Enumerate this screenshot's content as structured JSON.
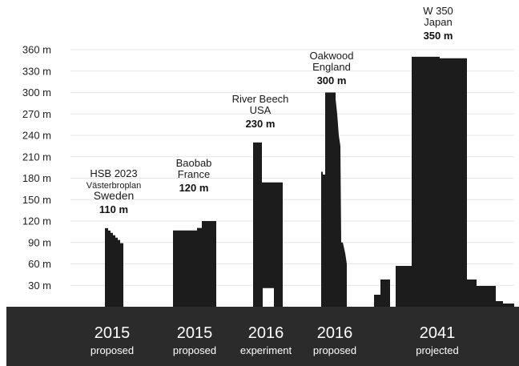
{
  "chart_data": {
    "type": "bar",
    "title": "",
    "xlabel": "",
    "ylabel": "",
    "unit": "m",
    "ylim": [
      0,
      360
    ],
    "yticks": [
      30,
      60,
      90,
      120,
      150,
      180,
      210,
      240,
      270,
      300,
      330,
      360
    ],
    "grid": true,
    "legend": "none",
    "colors": {
      "building": "#1c1c1c",
      "ground": "#2b2b2b",
      "grid": "#e6e6e6",
      "axis_text": "#222222",
      "year_text": "#ffffff"
    },
    "buildings": [
      {
        "id": "hsb",
        "name": "HSB 2023",
        "location_lines": [
          "Västerbroplan",
          "Sweden"
        ],
        "height_label": "110 m",
        "value": 110,
        "year": "2015",
        "status": "proposed"
      },
      {
        "id": "baobab",
        "name": "Baobab",
        "location_lines": [
          "France"
        ],
        "height_label": "120 m",
        "value": 120,
        "year": "2015",
        "status": "proposed"
      },
      {
        "id": "riverbeech",
        "name": "River Beech",
        "location_lines": [
          "USA"
        ],
        "height_label": "230 m",
        "value": 230,
        "year": "2016",
        "status": "experiment"
      },
      {
        "id": "oakwood",
        "name": "Oakwood",
        "location_lines": [
          "England"
        ],
        "height_label": "300 m",
        "value": 300,
        "year": "2016",
        "status": "proposed"
      },
      {
        "id": "w350",
        "name": "W 350",
        "location_lines": [
          "Japan"
        ],
        "height_label": "350 m",
        "value": 350,
        "year": "2041",
        "status": "projected"
      }
    ]
  }
}
